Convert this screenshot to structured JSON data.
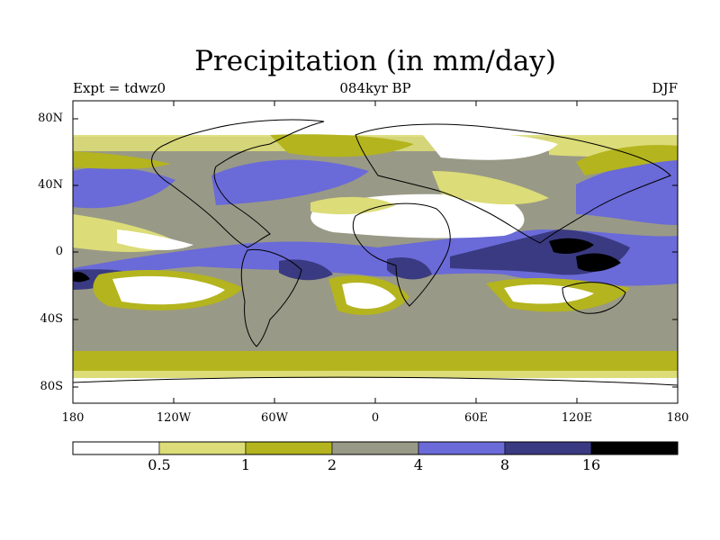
{
  "title": "Precipitation (in mm/day)",
  "experiment": "Expt = tdwz0",
  "period": "084kyr BP",
  "season": "DJF",
  "lat_labels": [
    "80N",
    "40N",
    "0",
    "40S",
    "80S"
  ],
  "lon_labels": [
    "180",
    "120W",
    "60W",
    "0",
    "60E",
    "120E",
    "180"
  ],
  "colorbar": {
    "colors": [
      "#ffffff",
      "#dcdc78",
      "#b4b41e",
      "#999987",
      "#6a6ad8",
      "#3a3a82",
      "#000000"
    ],
    "labels": [
      "0.5",
      "1",
      "2",
      "4",
      "8",
      "16"
    ]
  }
}
